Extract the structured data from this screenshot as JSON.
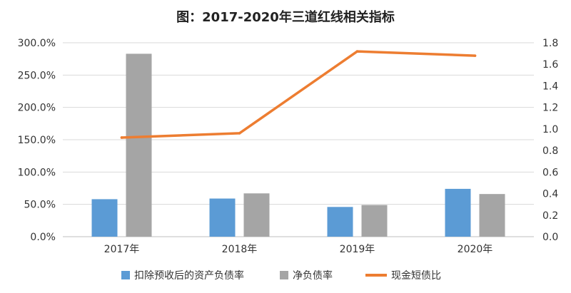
{
  "chart_data": {
    "type": "bar",
    "title": "图：2017-2020年三道红线相关指标",
    "categories": [
      "2017年",
      "2018年",
      "2019年",
      "2020年"
    ],
    "series": [
      {
        "name": "扣除预收后的资产负债率",
        "type": "bar",
        "axis": "left",
        "color": "#5b9bd5",
        "values": [
          58.0,
          59.0,
          46.0,
          74.0
        ]
      },
      {
        "name": "净负债率",
        "type": "bar",
        "axis": "left",
        "color": "#a5a5a5",
        "values": [
          283.0,
          67.0,
          49.0,
          66.0
        ]
      },
      {
        "name": "现金短债比",
        "type": "line",
        "axis": "right",
        "color": "#ed7d31",
        "values": [
          0.92,
          0.96,
          1.72,
          1.68
        ]
      }
    ],
    "y_left": {
      "ylim": [
        0,
        300
      ],
      "ticks": [
        "0.0%",
        "50.0%",
        "100.0%",
        "150.0%",
        "200.0%",
        "250.0%",
        "300.0%"
      ]
    },
    "y_right": {
      "ylim": [
        0,
        1.8
      ],
      "ticks": [
        "0.0",
        "0.2",
        "0.4",
        "0.6",
        "0.8",
        "1.0",
        "1.2",
        "1.4",
        "1.6",
        "1.8"
      ]
    },
    "grid": true,
    "legend_position": "bottom"
  }
}
